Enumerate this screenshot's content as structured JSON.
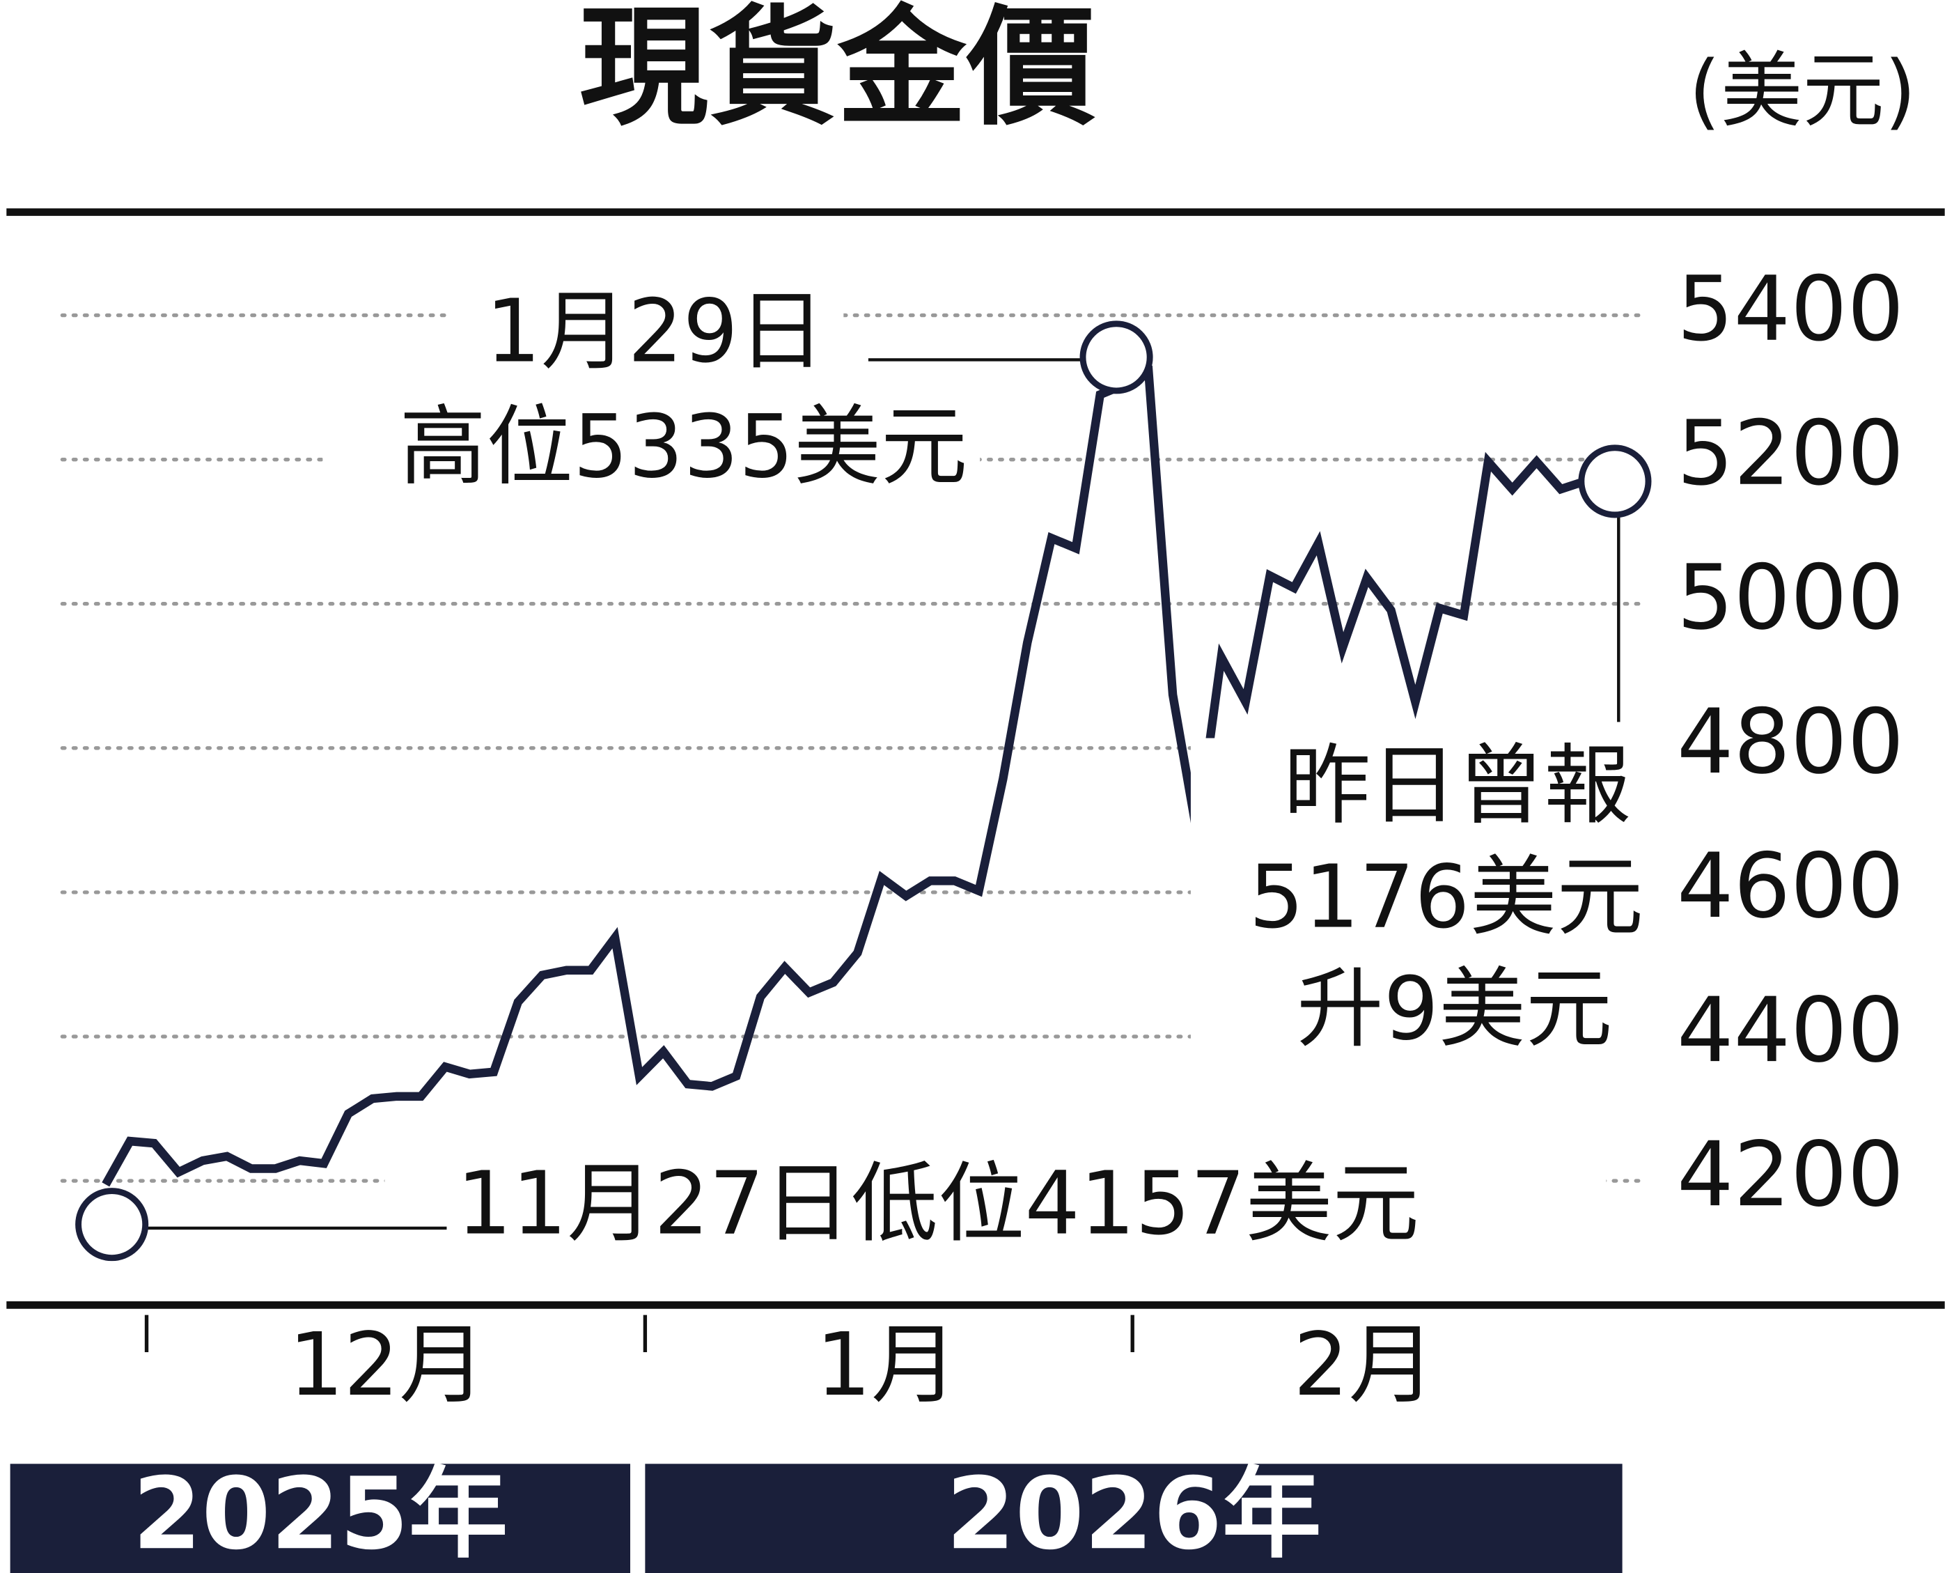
{
  "chart_data": {
    "type": "line",
    "title": "現貨金價",
    "unit": "(美元)",
    "values": [
      4195,
      4255,
      4252,
      4212,
      4228,
      4234,
      4217,
      4217,
      4228,
      4224,
      4293,
      4314,
      4317,
      4317,
      4358,
      4348,
      4351,
      4448,
      4485,
      4492,
      4492,
      4537,
      4345,
      4379,
      4334,
      4331,
      4345,
      4455,
      4496,
      4461,
      4475,
      4516,
      4620,
      4595,
      4616,
      4616,
      4602,
      4757,
      4946,
      5091,
      5077,
      5290,
      5304,
      5321,
      4874,
      4681,
      4926,
      4864,
      5039,
      5022,
      5084,
      4939,
      5036,
      4991,
      4864,
      4994,
      4984,
      5197,
      5159,
      5197,
      5159,
      5170
    ],
    "color": "#1a1f3a",
    "ylim": [
      4100,
      5500
    ],
    "yticks": [
      4200,
      4400,
      4600,
      4800,
      5000,
      5200,
      5400
    ],
    "grid": true,
    "months": [
      "12月",
      "1月",
      "2月"
    ],
    "years": [
      "2025年",
      "2026年"
    ],
    "annotations": {
      "high_date": "1月29日",
      "high": "高位5335美元",
      "low": "11月27日低位4157美元",
      "latest": [
        "昨日曾報",
        "5176美元",
        "升9美元"
      ]
    }
  }
}
